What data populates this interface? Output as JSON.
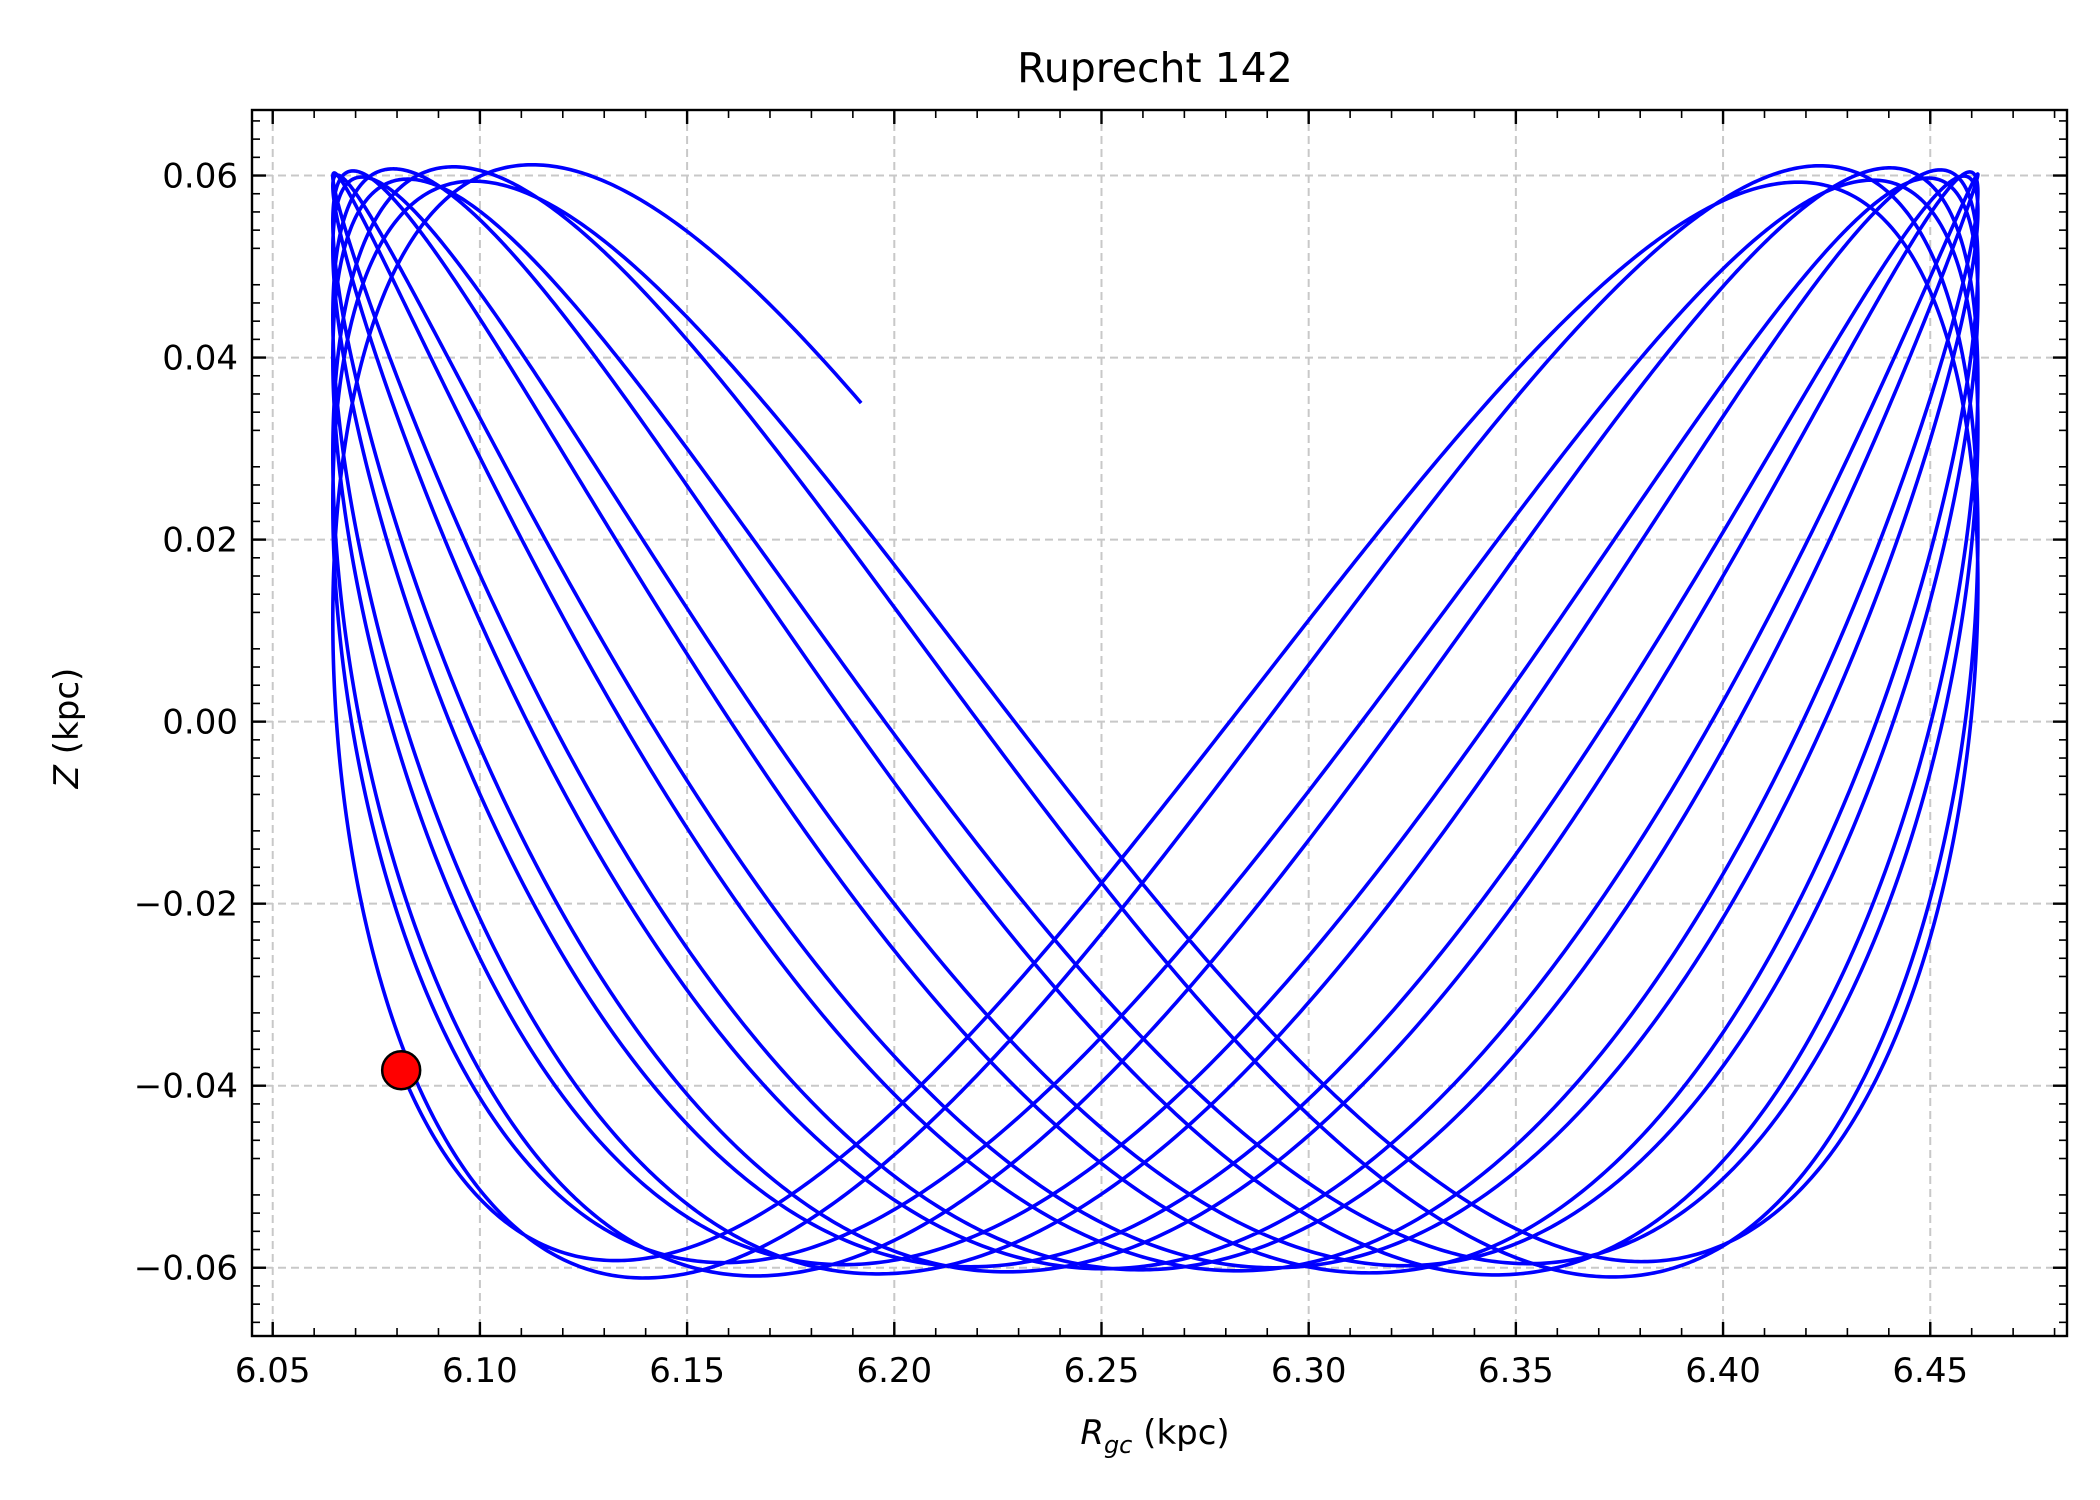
{
  "chart_data": {
    "type": "line",
    "title": "Ruprecht 142",
    "xlabel": {
      "symbol": "R",
      "subscript": "gc",
      "unit": " (kpc)"
    },
    "ylabel": {
      "symbol": "Z",
      "unit": " (kpc)"
    },
    "xlim": [
      6.045,
      6.483
    ],
    "ylim": [
      -0.0675,
      0.0672
    ],
    "x_ticks": [
      "6.05",
      "6.10",
      "6.15",
      "6.20",
      "6.25",
      "6.30",
      "6.35",
      "6.40",
      "6.45"
    ],
    "x_tick_values": [
      6.05,
      6.1,
      6.15,
      6.2,
      6.25,
      6.3,
      6.35,
      6.4,
      6.45
    ],
    "y_ticks": [
      "0.06",
      "0.04",
      "0.02",
      "0.00",
      "−0.02",
      "−0.04",
      "−0.06"
    ],
    "y_tick_values": [
      0.06,
      0.04,
      0.02,
      0.0,
      -0.02,
      -0.04,
      -0.06
    ],
    "grid": true,
    "orbit": {
      "r_min": 6.0645,
      "r_max": 6.4615,
      "z_amplitude_start": 0.0592,
      "z_amplitude_end": 0.0612,
      "start_point": [
        6.081,
        -0.0383
      ],
      "end_point": [
        6.192,
        0.035
      ],
      "color": "#0000ff"
    },
    "marker": {
      "x": 6.081,
      "y": -0.0383,
      "color": "#ff0000",
      "edge": "#000000"
    }
  }
}
